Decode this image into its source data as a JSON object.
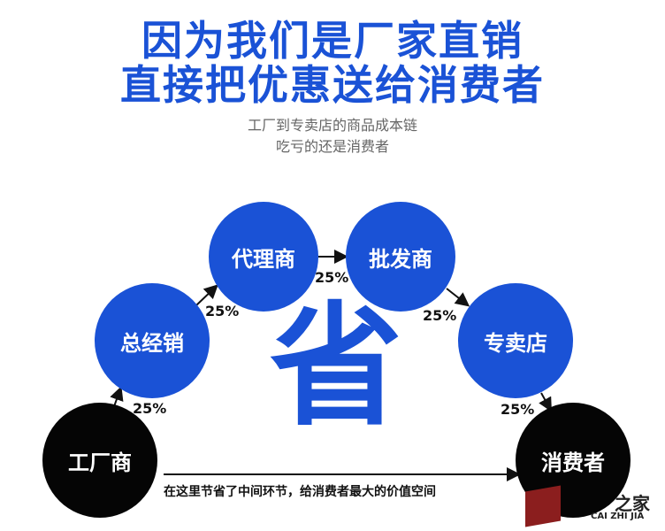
{
  "headline": {
    "line1": "因为我们是厂家直销",
    "line2": "直接把优惠送给消费者"
  },
  "subtitle": {
    "line1": "工厂到专卖店的商品成本链",
    "line2": "吃亏的还是消费者"
  },
  "nodes": [
    {
      "label": "工厂商",
      "color": "#050505"
    },
    {
      "label": "总经销",
      "color": "#1a52d6"
    },
    {
      "label": "代理商",
      "color": "#1a52d6"
    },
    {
      "label": "批发商",
      "color": "#1a52d6"
    },
    {
      "label": "专卖店",
      "color": "#1a52d6"
    },
    {
      "label": "消费者",
      "color": "#050505"
    }
  ],
  "markups": [
    "25%",
    "25%",
    "25%",
    "25%",
    "25%"
  ],
  "center_char": "省",
  "bottom_note": "在这里节省了中间环节，给消费者最大的价值空间",
  "logo": {
    "cn": "之家",
    "en": "CAI ZHI JIA"
  }
}
